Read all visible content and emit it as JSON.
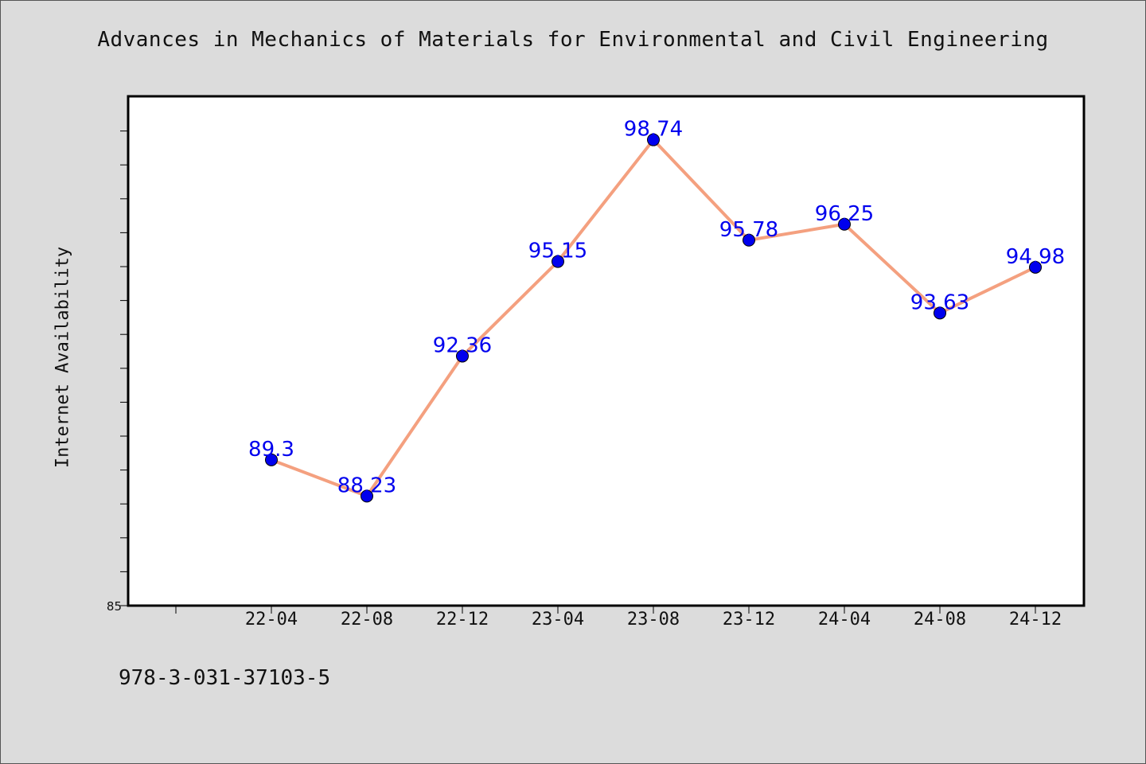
{
  "chart_data": {
    "type": "line",
    "title": "Advances in Mechanics of Materials for Environmental and Civil Engineering",
    "xlabel": "",
    "ylabel": "Internet Availability",
    "categories": [
      "22-04",
      "22-08",
      "22-12",
      "23-04",
      "23-08",
      "23-12",
      "24-04",
      "24-08",
      "24-12"
    ],
    "series": [
      {
        "values": [
          89.3,
          88.23,
          92.36,
          95.15,
          98.74,
          95.78,
          96.25,
          93.63,
          94.98
        ],
        "labels": [
          "89.3",
          "88.23",
          "92.36",
          "95.15",
          "98.74",
          "95.78",
          "96.25",
          "93.63",
          "94.98"
        ]
      }
    ],
    "ylim": [
      85,
      100
    ],
    "y_tick_labels": [
      {
        "value": 85,
        "label": "85"
      }
    ],
    "grid": false,
    "legend": "none",
    "colors": {
      "line": "#f4a07f",
      "marker": "#0000ee",
      "data_label": "#0000ee",
      "background": "#dcdcdc",
      "plot_background": "#ffffff"
    }
  },
  "footer": {
    "code": "978-3-031-37103-5"
  }
}
